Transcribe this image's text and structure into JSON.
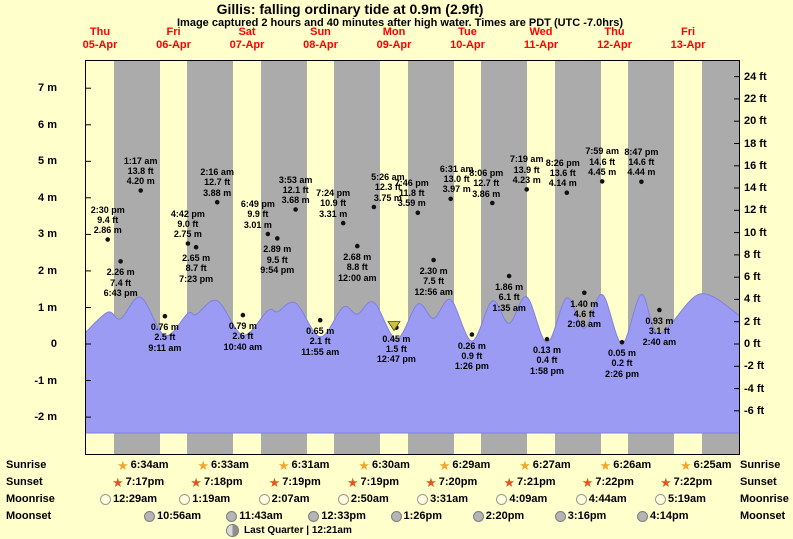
{
  "title": "Gillis: falling ordinary tide at 0.9m (2.9ft)",
  "subtitle": "Image captured 2 hours and 40 minutes after high water. Times are PDT (UTC -7.0hrs)",
  "colors": {
    "background": "#ffffcc",
    "night_band": "#ababab",
    "tide_fill": "#9b9bf3",
    "tide_stroke": "#8080e0",
    "day_label_red": "#ff0000",
    "sunrise_star": "#f2a52c",
    "sunset_star": "#e2571d",
    "moonrise_fill": "#ffffdd",
    "moonset_fill": "#b5b5b5",
    "marker_fill": "#cfc13a"
  },
  "chart_data": {
    "type": "area",
    "title": "Gillis: falling ordinary tide at 0.9m (2.9ft)",
    "x_axis": {
      "days": [
        {
          "dow": "Thu",
          "date": "05-Apr"
        },
        {
          "dow": "Fri",
          "date": "06-Apr"
        },
        {
          "dow": "Sat",
          "date": "07-Apr"
        },
        {
          "dow": "Sun",
          "date": "08-Apr"
        },
        {
          "dow": "Mon",
          "date": "09-Apr"
        },
        {
          "dow": "Tue",
          "date": "10-Apr"
        },
        {
          "dow": "Wed",
          "date": "11-Apr"
        },
        {
          "dow": "Thu",
          "date": "12-Apr"
        },
        {
          "dow": "Fri",
          "date": "13-Apr"
        }
      ]
    },
    "y_axis_left": {
      "unit": "m",
      "ticks": [
        {
          "label": "7 m",
          "value": 7
        },
        {
          "label": "6 m",
          "value": 6
        },
        {
          "label": "5 m",
          "value": 5
        },
        {
          "label": "4 m",
          "value": 4
        },
        {
          "label": "3 m",
          "value": 3
        },
        {
          "label": "2 m",
          "value": 2
        },
        {
          "label": "1 m",
          "value": 1
        },
        {
          "label": "0",
          "value": 0
        },
        {
          "label": "-1 m",
          "value": -1
        },
        {
          "label": "-2 m",
          "value": -2
        }
      ]
    },
    "y_axis_right": {
      "unit": "ft",
      "ticks": [
        {
          "label": "24 ft",
          "value": 24
        },
        {
          "label": "22 ft",
          "value": 22
        },
        {
          "label": "20 ft",
          "value": 20
        },
        {
          "label": "18 ft",
          "value": 18
        },
        {
          "label": "16 ft",
          "value": 16
        },
        {
          "label": "14 ft",
          "value": 14
        },
        {
          "label": "12 ft",
          "value": 12
        },
        {
          "label": "10 ft",
          "value": 10
        },
        {
          "label": "8 ft",
          "value": 8
        },
        {
          "label": "6 ft",
          "value": 6
        },
        {
          "label": "4 ft",
          "value": 4
        },
        {
          "label": "2 ft",
          "value": 2
        },
        {
          "label": "0 ft",
          "value": 0
        },
        {
          "label": "-2 ft",
          "value": -2
        },
        {
          "label": "-4 ft",
          "value": -4
        },
        {
          "label": "-6 ft",
          "value": -6
        }
      ]
    },
    "tide_events": [
      {
        "day_index": 0,
        "time": "2:30 pm",
        "height_ft": "9.4 ft",
        "height_m": "2.86 m",
        "kind": "high"
      },
      {
        "day_index": 0,
        "time": "6:43 pm",
        "height_ft": "7.4 ft",
        "height_m": "2.26 m",
        "kind": "low"
      },
      {
        "day_index": 1,
        "time": "1:17 am",
        "height_ft": "13.8 ft",
        "height_m": "4.20 m",
        "kind": "high"
      },
      {
        "day_index": 1,
        "time": "9:11 am",
        "height_ft": "2.5 ft",
        "height_m": "0.76 m",
        "kind": "low"
      },
      {
        "day_index": 1,
        "time": "4:42 pm",
        "height_ft": "9.0 ft",
        "height_m": "2.75 m",
        "kind": "high"
      },
      {
        "day_index": 1,
        "time": "7:23 pm",
        "height_ft": "8.7 ft",
        "height_m": "2.65 m",
        "kind": "low"
      },
      {
        "day_index": 2,
        "time": "2:16 am",
        "height_ft": "12.7 ft",
        "height_m": "3.88 m",
        "kind": "high"
      },
      {
        "day_index": 2,
        "time": "10:40 am",
        "height_ft": "2.6 ft",
        "height_m": "0.79 m",
        "kind": "low"
      },
      {
        "day_index": 2,
        "time": "6:49 pm",
        "height_ft": "9.9 ft",
        "height_m": "3.01 m",
        "kind": "high"
      },
      {
        "day_index": 2,
        "time": "9:54 pm",
        "height_ft": "9.5 ft",
        "height_m": "2.89 m",
        "kind": "low"
      },
      {
        "day_index": 3,
        "time": "3:53 am",
        "height_ft": "12.1 ft",
        "height_m": "3.68 m",
        "kind": "high"
      },
      {
        "day_index": 3,
        "time": "11:55 am",
        "height_ft": "2.1 ft",
        "height_m": "0.65 m",
        "kind": "low"
      },
      {
        "day_index": 3,
        "time": "7:24 pm",
        "height_ft": "10.9 ft",
        "height_m": "3.31 m",
        "kind": "high"
      },
      {
        "day_index": 4,
        "time": "12:00 am",
        "height_ft": "8.8 ft",
        "height_m": "2.68 m",
        "kind": "low"
      },
      {
        "day_index": 4,
        "time": "5:26 am",
        "height_ft": "12.3 ft",
        "height_m": "3.75 m",
        "kind": "high"
      },
      {
        "day_index": 4,
        "time": "12:47 pm",
        "height_ft": "1.5 ft",
        "height_m": "0.45 m",
        "kind": "low"
      },
      {
        "day_index": 4,
        "time": "7:46 pm",
        "height_ft": "11.8 ft",
        "height_m": "3.59 m",
        "kind": "high"
      },
      {
        "day_index": 5,
        "time": "12:56 am",
        "height_ft": "7.5 ft",
        "height_m": "2.30 m",
        "kind": "low"
      },
      {
        "day_index": 5,
        "time": "6:31 am",
        "height_ft": "13.0 ft",
        "height_m": "3.97 m",
        "kind": "high"
      },
      {
        "day_index": 5,
        "time": "1:26 pm",
        "height_ft": "0.9 ft",
        "height_m": "0.26 m",
        "kind": "low"
      },
      {
        "day_index": 5,
        "time": "8:06 pm",
        "height_ft": "12.7 ft",
        "height_m": "3.86 m",
        "kind": "high"
      },
      {
        "day_index": 6,
        "time": "1:35 am",
        "height_ft": "6.1 ft",
        "height_m": "1.86 m",
        "kind": "low"
      },
      {
        "day_index": 6,
        "time": "7:19 am",
        "height_ft": "13.9 ft",
        "height_m": "4.23 m",
        "kind": "high"
      },
      {
        "day_index": 6,
        "time": "1:58 pm",
        "height_ft": "0.4 ft",
        "height_m": "0.13 m",
        "kind": "low"
      },
      {
        "day_index": 6,
        "time": "8:26 pm",
        "height_ft": "13.6 ft",
        "height_m": "4.14 m",
        "kind": "high"
      },
      {
        "day_index": 7,
        "time": "2:08 am",
        "height_ft": "4.6 ft",
        "height_m": "1.40 m",
        "kind": "low"
      },
      {
        "day_index": 7,
        "time": "7:59 am",
        "height_ft": "14.6 ft",
        "height_m": "4.45 m",
        "kind": "high"
      },
      {
        "day_index": 7,
        "time": "2:26 pm",
        "height_ft": "0.2 ft",
        "height_m": "0.05 m",
        "kind": "low"
      },
      {
        "day_index": 7,
        "time": "8:47 pm",
        "height_ft": "14.6 ft",
        "height_m": "4.44 m",
        "kind": "high"
      },
      {
        "day_index": 8,
        "time": "2:40 am",
        "height_ft": "3.1 ft",
        "height_m": "0.93 m",
        "kind": "low"
      }
    ],
    "current_tide": {
      "height_m": 0.9,
      "height_ft": 2.9,
      "state": "falling",
      "captured": "2 hours and 40 minutes after high water"
    }
  },
  "astro": {
    "sunrise": {
      "label": "Sunrise",
      "times": [
        "6:34am",
        "6:33am",
        "6:31am",
        "6:30am",
        "6:29am",
        "6:27am",
        "6:26am",
        "6:25am"
      ]
    },
    "sunset": {
      "label": "Sunset",
      "times": [
        "7:17pm",
        "7:18pm",
        "7:19pm",
        "7:19pm",
        "7:20pm",
        "7:21pm",
        "7:22pm",
        "7:22pm"
      ]
    },
    "moonrise": {
      "label": "Moonrise",
      "times": [
        "12:29am",
        "1:19am",
        "2:07am",
        "2:50am",
        "3:31am",
        "4:09am",
        "4:44am",
        "5:19am"
      ]
    },
    "moonset": {
      "label": "Moonset",
      "times": [
        "10:56am",
        "11:43am",
        "12:33pm",
        "1:26pm",
        "2:20pm",
        "3:16pm",
        "4:14pm"
      ]
    },
    "moon_phase": "Last Quarter | 12:21am"
  }
}
